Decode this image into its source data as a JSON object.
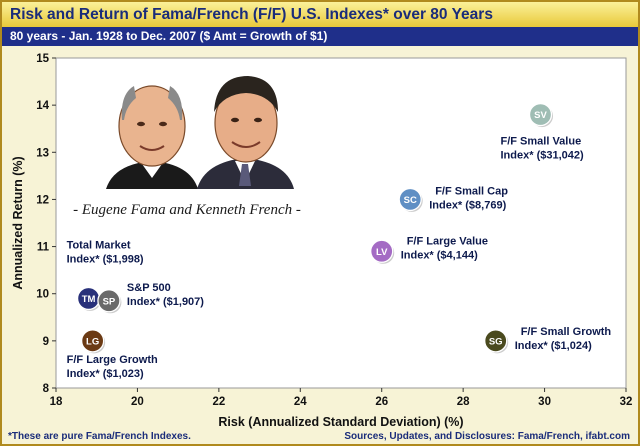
{
  "header": {
    "title": "Risk and Return of Fama/French (F/F) U.S. Indexes* over 80 Years",
    "subtitle": "80 years - Jan. 1928 to Dec. 2007    ($ Amt = Growth of $1)"
  },
  "photo": {
    "caption": "- Eugene Fama and Kenneth French -"
  },
  "footer": {
    "note": "*These are pure Fama/French Indexes.",
    "source": "Sources, Updates, and Disclosures: Fama/French, ifabt.com"
  },
  "colors": {
    "title_bg": "#f2d85a",
    "subtitle_bg": "#1f2f8a",
    "plot_bg": "#ffffff",
    "frame_bg": "#f7f3d6",
    "label_text": "#0d1a4d"
  },
  "chart_data": {
    "type": "scatter",
    "xlabel": "Risk (Annualized Standard Deviation) (%)",
    "ylabel": "Annualized Return (%)",
    "xlim": [
      18,
      32
    ],
    "ylim": [
      8,
      15
    ],
    "xticks": [
      18,
      20,
      22,
      24,
      26,
      28,
      30,
      32
    ],
    "yticks": [
      8,
      9,
      10,
      11,
      12,
      13,
      14,
      15
    ],
    "grid": false,
    "points": [
      {
        "code": "SV",
        "label": [
          "F/F Small Value",
          "Index* ($31,042)"
        ],
        "x": 29.9,
        "y": 13.8,
        "color": "#9fbdb4"
      },
      {
        "code": "SC",
        "label": [
          "F/F Small Cap",
          "Index* ($8,769)"
        ],
        "x": 26.7,
        "y": 12.0,
        "color": "#5f8fc4"
      },
      {
        "code": "LV",
        "label": [
          "F/F Large Value",
          "Index* ($4,144)"
        ],
        "x": 26.0,
        "y": 10.9,
        "color": "#a46bc4"
      },
      {
        "code": "SG",
        "label": [
          "F/F Small Growth",
          "Index* ($1,024)"
        ],
        "x": 28.8,
        "y": 9.0,
        "color": "#4a4a1e"
      },
      {
        "code": "TM",
        "label": [
          "Total Market",
          "Index* ($1,998)"
        ],
        "x": 18.8,
        "y": 9.9,
        "color": "#28307a"
      },
      {
        "code": "SP",
        "label": [
          "S&P 500",
          "Index* ($1,907)"
        ],
        "x": 19.3,
        "y": 9.85,
        "color": "#6a6a6a"
      },
      {
        "code": "LG",
        "label": [
          "F/F Large Growth",
          "Index* ($1,023)"
        ],
        "x": 18.9,
        "y": 9.0,
        "color": "#6b3a14"
      }
    ]
  }
}
